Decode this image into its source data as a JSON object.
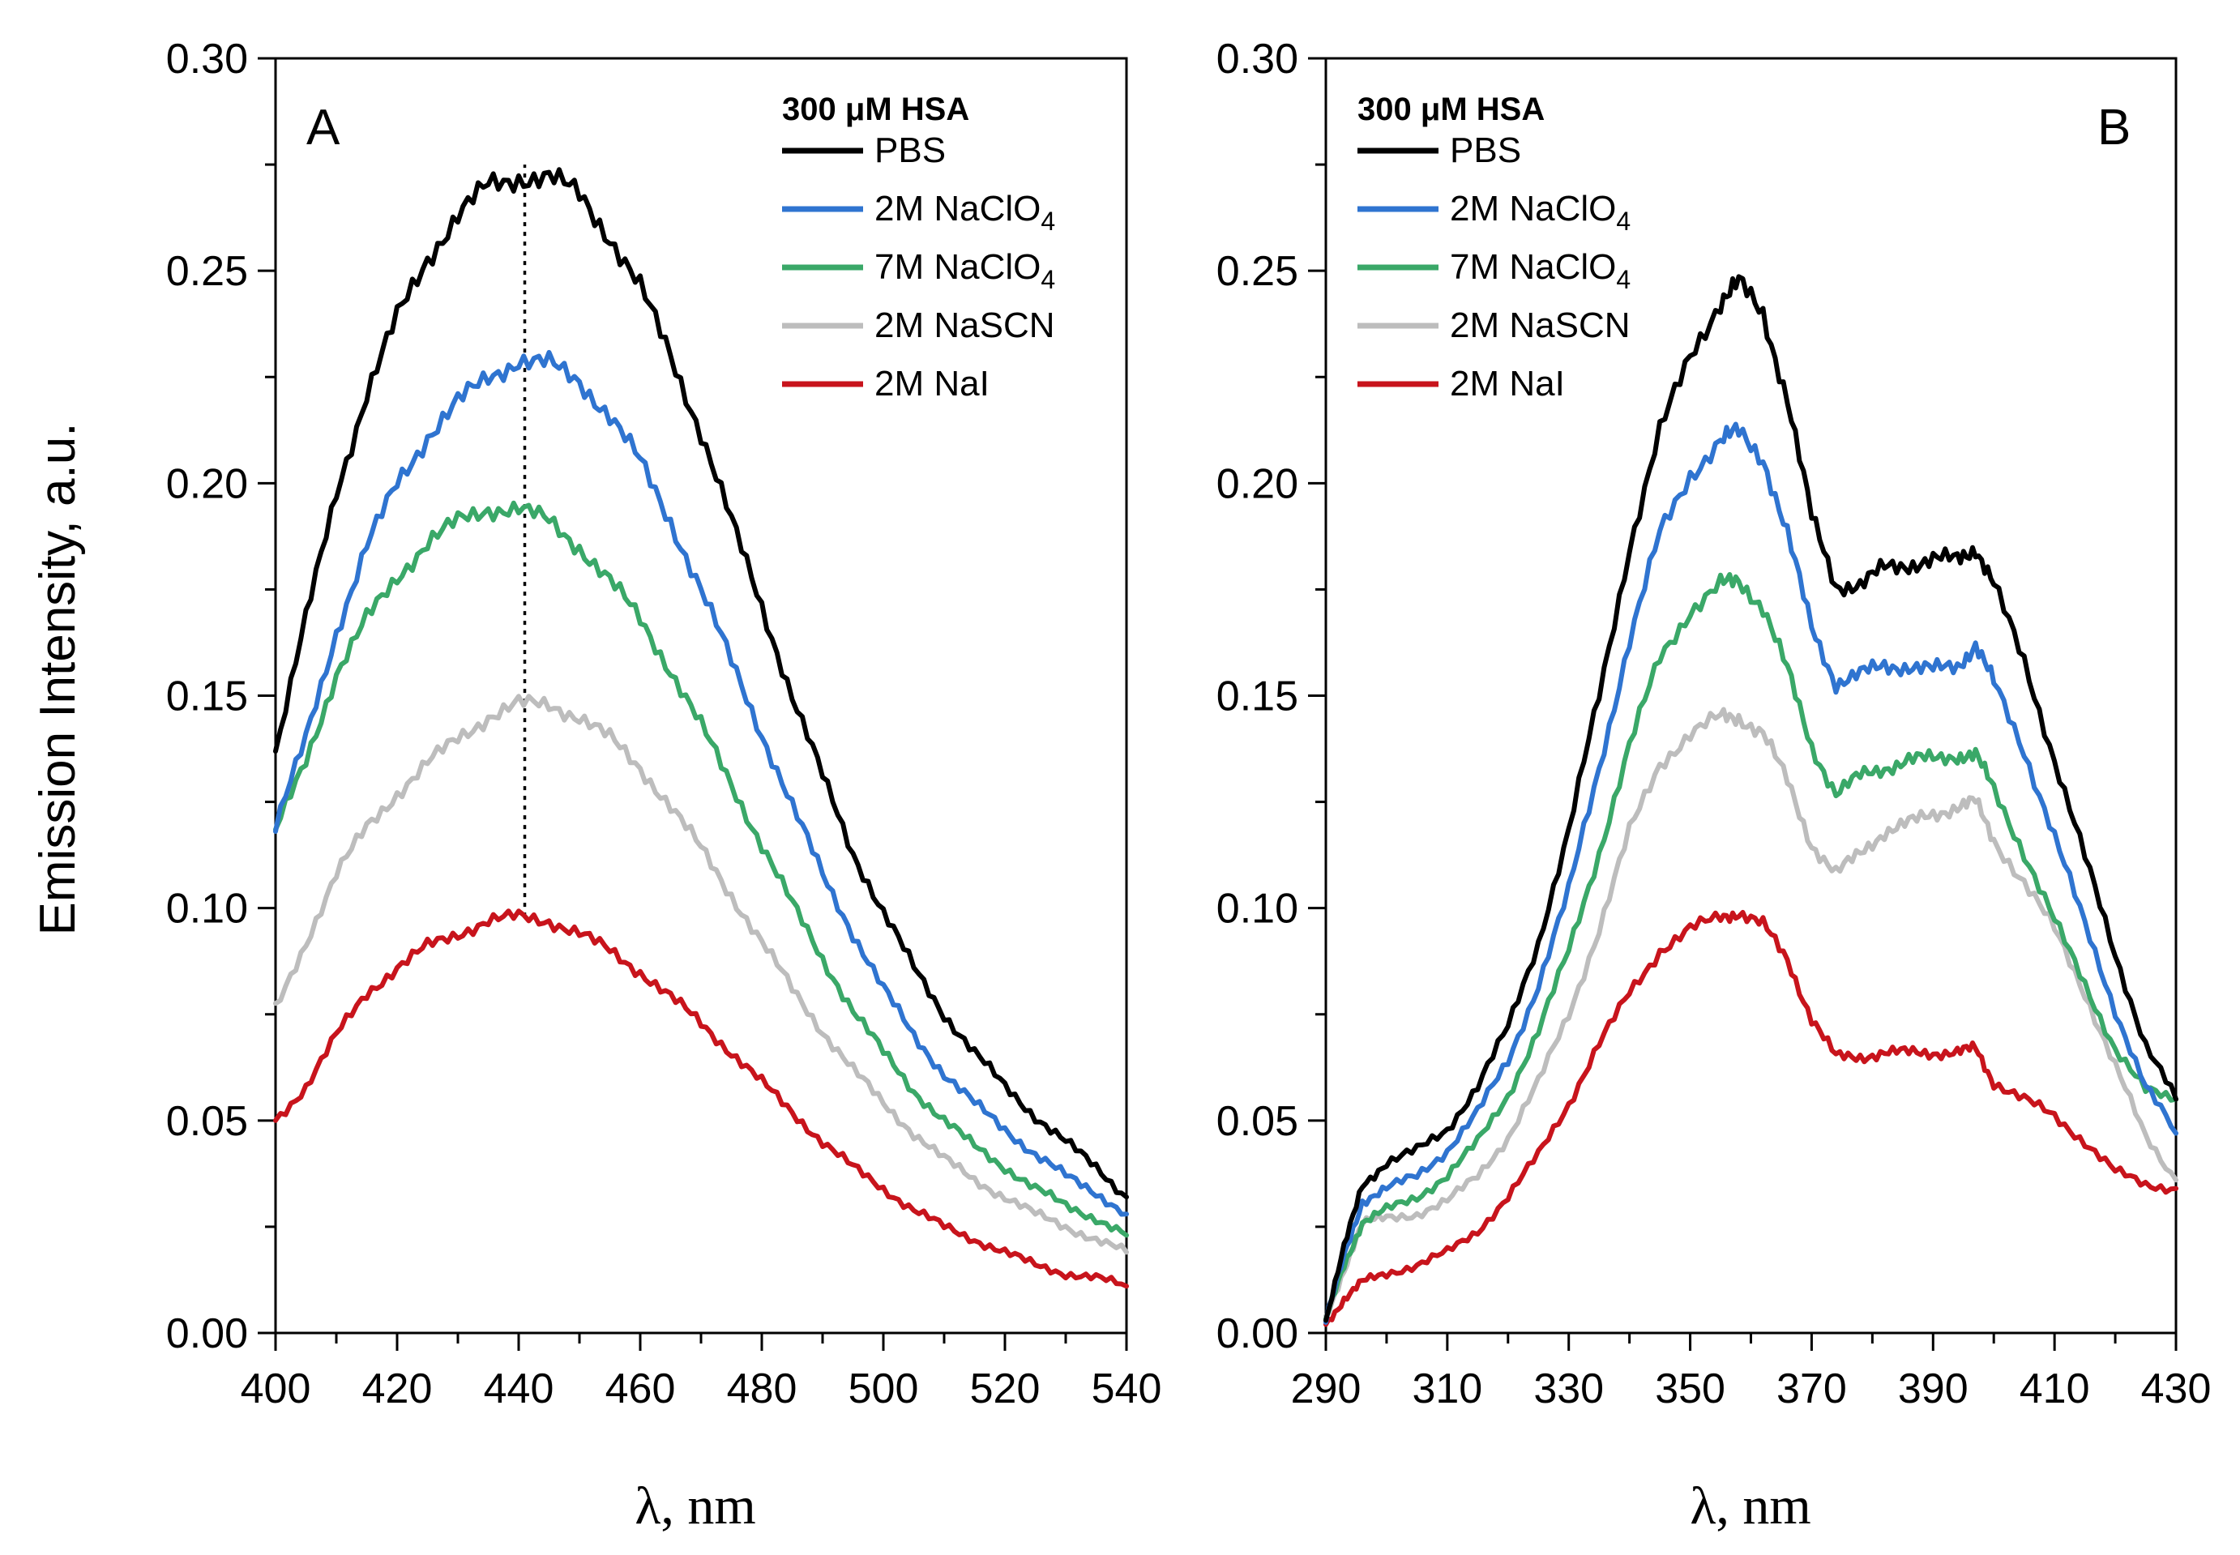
{
  "figure": {
    "y_axis_label": "Emission Intensity, a.u."
  },
  "colors": {
    "PBS": "#000000",
    "2M NaClO4": "#2f74d0",
    "7M NaClO4": "#3aa868",
    "2M NaSCN": "#bdbdbd",
    "2M NaI": "#c8141c"
  },
  "chart_data": [
    {
      "type": "line",
      "panel": "A",
      "title": "",
      "xlabel": "λ, nm",
      "ylabel": "Emission Intensity, a.u.",
      "xlim": [
        400,
        540
      ],
      "ylim": [
        0.0,
        0.3
      ],
      "xticks": [
        400,
        420,
        440,
        460,
        480,
        500,
        520,
        540
      ],
      "yticks": [
        "0.00",
        "0.05",
        "0.10",
        "0.15",
        "0.20",
        "0.25",
        "0.30"
      ],
      "legend_title": "300 μM HSA",
      "legend_position": "top-right",
      "annotation": {
        "type": "dotted-vertical-line",
        "x": 441,
        "y_from": 0.098,
        "y_to": 0.275
      },
      "x": [
        400,
        405,
        410,
        415,
        420,
        425,
        430,
        435,
        440,
        445,
        450,
        455,
        460,
        465,
        470,
        475,
        480,
        485,
        490,
        495,
        500,
        505,
        510,
        515,
        520,
        525,
        530,
        535,
        540
      ],
      "series": [
        {
          "name": "PBS",
          "values": [
            0.137,
            0.168,
            0.198,
            0.221,
            0.239,
            0.253,
            0.263,
            0.27,
            0.272,
            0.272,
            0.268,
            0.258,
            0.246,
            0.23,
            0.212,
            0.191,
            0.171,
            0.15,
            0.131,
            0.113,
            0.099,
            0.086,
            0.075,
            0.066,
            0.058,
            0.051,
            0.045,
            0.039,
            0.032
          ]
        },
        {
          "name": "2M NaClO4",
          "values": [
            0.119,
            0.14,
            0.165,
            0.185,
            0.2,
            0.211,
            0.219,
            0.225,
            0.229,
            0.228,
            0.224,
            0.216,
            0.205,
            0.191,
            0.175,
            0.158,
            0.141,
            0.124,
            0.108,
            0.094,
            0.081,
            0.07,
            0.061,
            0.054,
            0.048,
            0.042,
            0.037,
            0.033,
            0.028
          ]
        },
        {
          "name": "7M NaClO4",
          "values": [
            0.118,
            0.135,
            0.155,
            0.168,
            0.178,
            0.186,
            0.191,
            0.194,
            0.194,
            0.191,
            0.185,
            0.177,
            0.168,
            0.156,
            0.143,
            0.129,
            0.115,
            0.101,
            0.088,
            0.076,
            0.066,
            0.057,
            0.05,
            0.044,
            0.039,
            0.034,
            0.03,
            0.027,
            0.023
          ]
        },
        {
          "name": "2M NaSCN",
          "values": [
            0.076,
            0.092,
            0.108,
            0.119,
            0.127,
            0.134,
            0.14,
            0.145,
            0.148,
            0.148,
            0.145,
            0.14,
            0.133,
            0.124,
            0.114,
            0.103,
            0.092,
            0.081,
            0.071,
            0.062,
            0.054,
            0.047,
            0.041,
            0.036,
            0.032,
            0.028,
            0.025,
            0.022,
            0.019
          ]
        },
        {
          "name": "2M NaI",
          "values": [
            0.05,
            0.058,
            0.07,
            0.08,
            0.086,
            0.091,
            0.094,
            0.097,
            0.098,
            0.097,
            0.094,
            0.09,
            0.085,
            0.079,
            0.073,
            0.066,
            0.059,
            0.052,
            0.045,
            0.039,
            0.034,
            0.029,
            0.025,
            0.022,
            0.019,
            0.016,
            0.014,
            0.013,
            0.011
          ]
        }
      ]
    },
    {
      "type": "line",
      "panel": "B",
      "title": "",
      "xlabel": "λ, nm",
      "ylabel": "",
      "xlim": [
        290,
        430
      ],
      "ylim": [
        0.0,
        0.3
      ],
      "xticks": [
        290,
        310,
        330,
        350,
        370,
        390,
        410,
        430
      ],
      "yticks": [
        "0.00",
        "0.05",
        "0.10",
        "0.15",
        "0.20",
        "0.25",
        "0.30"
      ],
      "legend_title": "300 μM HSA",
      "legend_position": "top-left",
      "x": [
        290,
        293,
        296,
        300,
        305,
        310,
        315,
        320,
        325,
        330,
        335,
        340,
        345,
        350,
        355,
        358,
        362,
        366,
        370,
        374,
        378,
        382,
        386,
        390,
        394,
        397,
        400,
        405,
        410,
        415,
        420,
        425,
        430
      ],
      "series": [
        {
          "name": "PBS",
          "values": [
            0.003,
            0.02,
            0.035,
            0.04,
            0.043,
            0.048,
            0.058,
            0.072,
            0.092,
            0.118,
            0.15,
            0.185,
            0.212,
            0.23,
            0.243,
            0.247,
            0.24,
            0.22,
            0.192,
            0.176,
            0.176,
            0.18,
            0.181,
            0.182,
            0.182,
            0.185,
            0.176,
            0.158,
            0.135,
            0.112,
            0.089,
            0.068,
            0.055
          ]
        },
        {
          "name": "2M NaClO4",
          "values": [
            0.003,
            0.018,
            0.031,
            0.034,
            0.037,
            0.043,
            0.052,
            0.064,
            0.082,
            0.104,
            0.133,
            0.163,
            0.188,
            0.202,
            0.21,
            0.212,
            0.206,
            0.188,
            0.166,
            0.153,
            0.155,
            0.157,
            0.157,
            0.156,
            0.157,
            0.162,
            0.153,
            0.137,
            0.117,
            0.096,
            0.076,
            0.058,
            0.047
          ]
        },
        {
          "name": "7M NaClO4",
          "values": [
            0.003,
            0.016,
            0.026,
            0.029,
            0.032,
            0.037,
            0.045,
            0.056,
            0.071,
            0.09,
            0.113,
            0.138,
            0.159,
            0.17,
            0.176,
            0.177,
            0.171,
            0.156,
            0.138,
            0.127,
            0.131,
            0.133,
            0.135,
            0.135,
            0.136,
            0.136,
            0.128,
            0.113,
            0.097,
            0.082,
            0.067,
            0.057,
            0.055
          ]
        },
        {
          "name": "2M NaSCN",
          "values": [
            0.003,
            0.015,
            0.026,
            0.027,
            0.028,
            0.031,
            0.037,
            0.046,
            0.059,
            0.075,
            0.095,
            0.118,
            0.134,
            0.141,
            0.145,
            0.145,
            0.141,
            0.13,
            0.115,
            0.108,
            0.113,
            0.118,
            0.12,
            0.122,
            0.124,
            0.125,
            0.116,
            0.106,
            0.095,
            0.08,
            0.063,
            0.046,
            0.036
          ]
        },
        {
          "name": "2M NaI",
          "values": [
            0.002,
            0.008,
            0.012,
            0.014,
            0.016,
            0.019,
            0.024,
            0.032,
            0.042,
            0.054,
            0.068,
            0.08,
            0.09,
            0.095,
            0.098,
            0.099,
            0.096,
            0.088,
            0.074,
            0.065,
            0.065,
            0.066,
            0.066,
            0.066,
            0.066,
            0.067,
            0.059,
            0.055,
            0.051,
            0.045,
            0.038,
            0.035,
            0.034
          ]
        }
      ]
    }
  ]
}
